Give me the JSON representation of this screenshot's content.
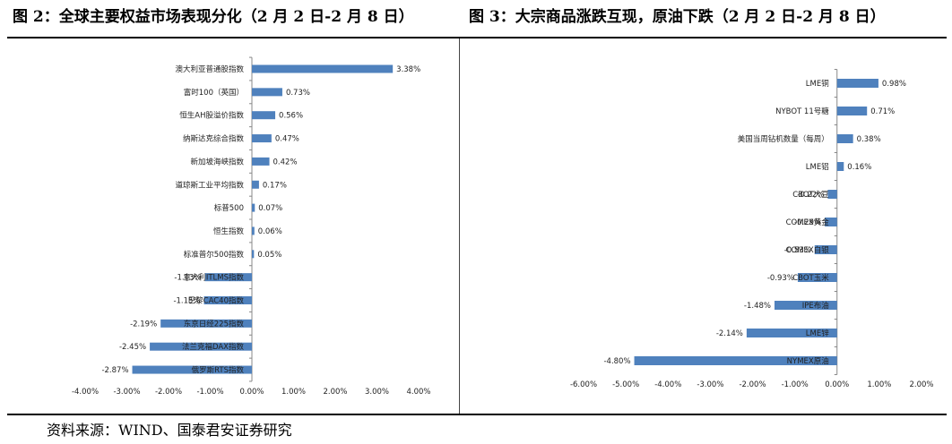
{
  "header": {
    "left_title": "图 2：全球主要权益市场表现分化（2 月 2 日-2 月 8 日）",
    "right_title": "图 3：大宗商品涨跌互现，原油下跌（2 月 2 日-2 月 8 日）"
  },
  "footer": {
    "source": "资料来源：WIND、国泰君安证券研究"
  },
  "chart_data": [
    {
      "type": "bar",
      "orientation": "horizontal",
      "title": "图 2：全球主要权益市场表现分化（2 月 2 日-2 月 8 日）",
      "categories": [
        "澳大利亚普通股指数",
        "富时100（英国）",
        "恒生AH股溢价指数",
        "纳斯达克综合指数",
        "新加坡海峡指数",
        "道琼斯工业平均指数",
        "标普500",
        "恒生指数",
        "标准普尔500指数",
        "意大利ITLMS指数",
        "巴黎CAC40指数",
        "东京日经225指数",
        "法兰克福DAX指数",
        "俄罗斯RTS指数"
      ],
      "values": [
        3.38,
        0.73,
        0.56,
        0.47,
        0.42,
        0.17,
        0.07,
        0.06,
        0.05,
        -1.13,
        -1.15,
        -2.19,
        -2.45,
        -2.87
      ],
      "value_labels": [
        "3.38%",
        "0.73%",
        "0.56%",
        "0.47%",
        "0.42%",
        "0.17%",
        "0.07%",
        "0.06%",
        "0.05%",
        "-1.13%",
        "-1.15%",
        "-2.19%",
        "-2.45%",
        "-2.87%"
      ],
      "xlim": [
        -4,
        4
      ],
      "xticks": [
        -4,
        -3,
        -2,
        -1,
        0,
        1,
        2,
        3,
        4
      ],
      "xtick_labels": [
        "-4.00%",
        "-3.00%",
        "-2.00%",
        "-1.00%",
        "0.00%",
        "1.00%",
        "2.00%",
        "3.00%",
        "4.00%"
      ],
      "xlabel": "",
      "ylabel": "",
      "grid": false,
      "bar_color": "#4f81bd"
    },
    {
      "type": "bar",
      "orientation": "horizontal",
      "title": "图 3：大宗商品涨跌互现，原油下跌（2 月 2 日-2 月 8 日）",
      "categories": [
        "LME铜",
        "NYBOT 11号糖",
        "美国当周钻机数量（每周）",
        "LME铝",
        "CBOT大豆",
        "COMEX黄金",
        "COMEX白银",
        "CBOT玉米",
        "IPE布油",
        "LME锌",
        "NYMEX原油"
      ],
      "values": [
        0.98,
        0.71,
        0.38,
        0.16,
        -0.22,
        -0.29,
        -0.53,
        -0.93,
        -1.48,
        -2.14,
        -4.8
      ],
      "value_labels": [
        "0.98%",
        "0.71%",
        "0.38%",
        "0.16%",
        "-0.22%",
        "-0.29%",
        "-0.53%",
        "-0.93%",
        "-1.48%",
        "-2.14%",
        "-4.80%"
      ],
      "xlim": [
        -6,
        2
      ],
      "xticks": [
        -6,
        -5,
        -4,
        -3,
        -2,
        -1,
        0,
        1,
        2
      ],
      "xtick_labels": [
        "-6.00%",
        "-5.00%",
        "-4.00%",
        "-3.00%",
        "-2.00%",
        "-1.00%",
        "0.00%",
        "1.00%",
        "2.00%"
      ],
      "xlabel": "",
      "ylabel": "",
      "grid": false,
      "bar_color": "#4f81bd"
    }
  ]
}
